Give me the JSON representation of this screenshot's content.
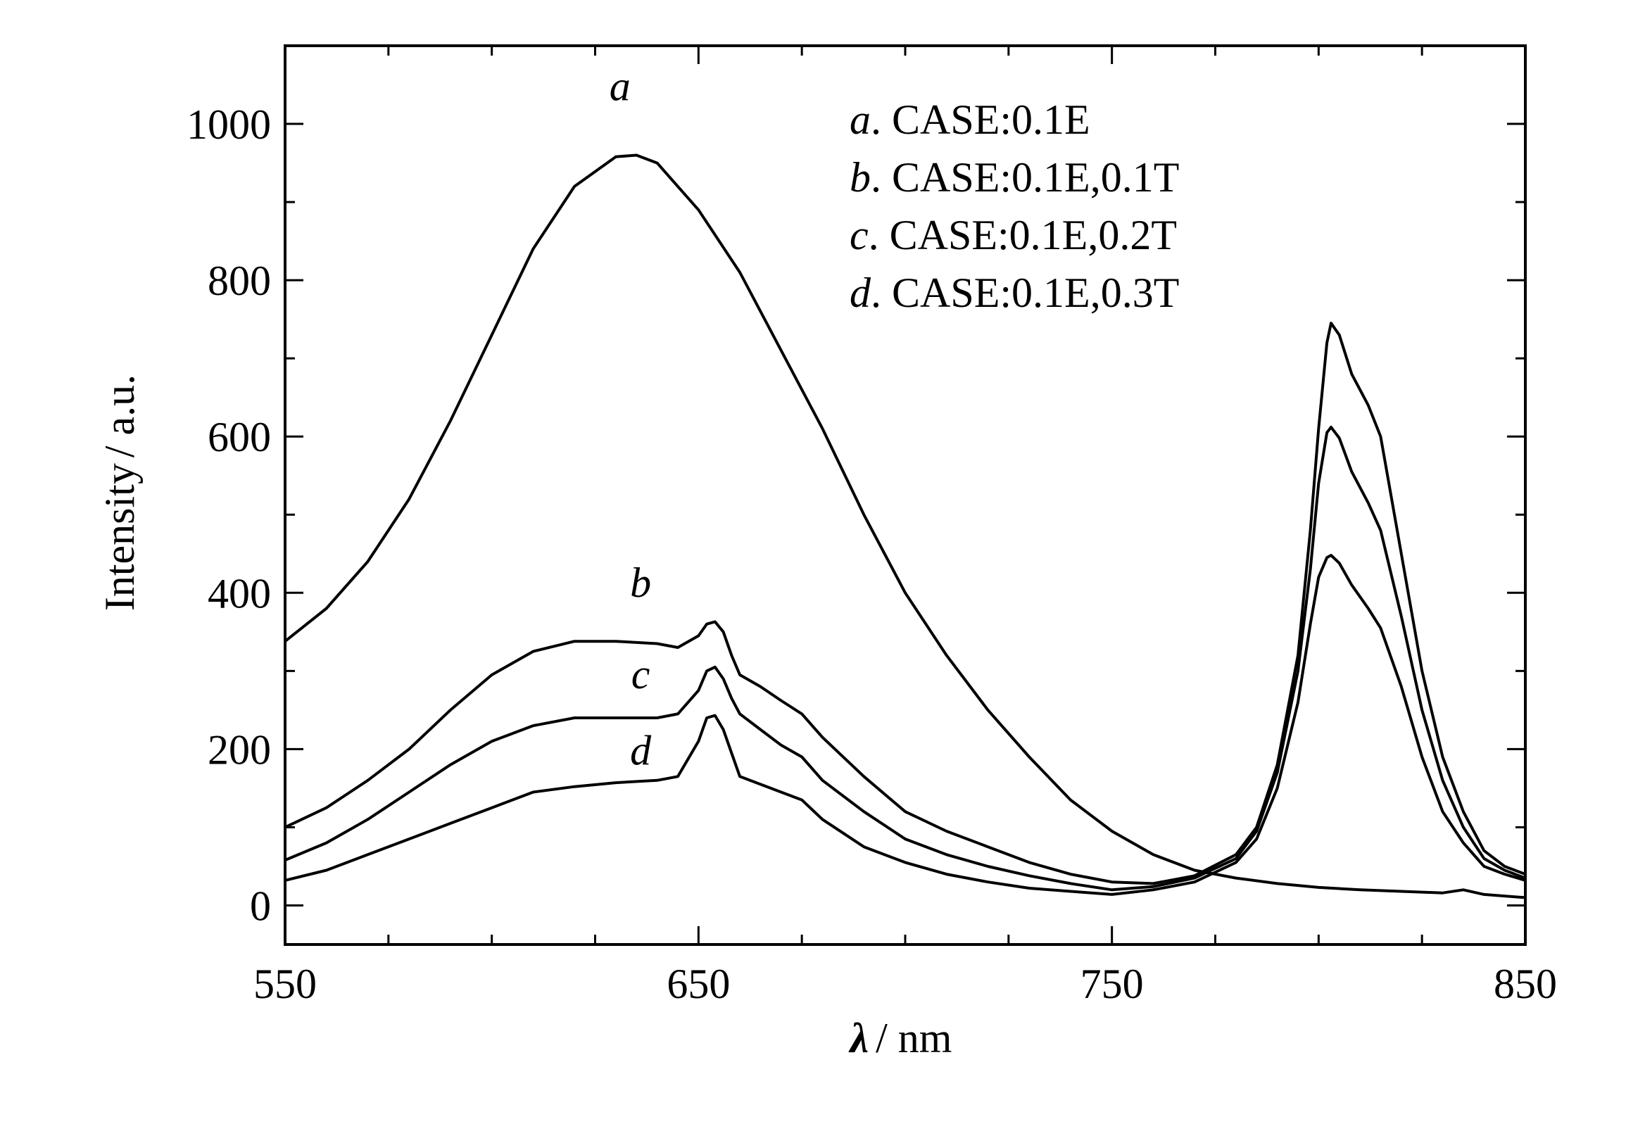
{
  "chart_data": {
    "type": "line",
    "xlabel_symbol": "λ",
    "xlabel_unit": "/ nm",
    "ylabel_text": "Intensity",
    "ylabel_unit": "/ a.u.",
    "xlim": [
      550,
      850
    ],
    "ylim": [
      -50,
      1100
    ],
    "x_ticks": [
      550,
      650,
      750,
      850
    ],
    "y_ticks": [
      0,
      200,
      400,
      600,
      800,
      1000
    ],
    "x_minor_step": 25,
    "y_minor_step": 100,
    "grid": false,
    "legend_placement": "top-right",
    "legend": [
      {
        "key": "a",
        "text": ". CASE:0.1E"
      },
      {
        "key": "b",
        "text": ". CASE:0.1E,0.1T"
      },
      {
        "key": "c",
        "text": ". CASE:0.1E,0.2T"
      },
      {
        "key": "d",
        "text": ". CASE:0.1E,0.3T"
      }
    ],
    "series": [
      {
        "name": "a",
        "label_at": [
          631,
          1030
        ],
        "points": [
          [
            550,
            338
          ],
          [
            560,
            380
          ],
          [
            570,
            440
          ],
          [
            580,
            520
          ],
          [
            590,
            620
          ],
          [
            600,
            730
          ],
          [
            610,
            840
          ],
          [
            620,
            920
          ],
          [
            630,
            958
          ],
          [
            635,
            960
          ],
          [
            640,
            950
          ],
          [
            650,
            890
          ],
          [
            660,
            810
          ],
          [
            670,
            710
          ],
          [
            680,
            610
          ],
          [
            690,
            500
          ],
          [
            700,
            400
          ],
          [
            710,
            320
          ],
          [
            720,
            250
          ],
          [
            730,
            190
          ],
          [
            740,
            135
          ],
          [
            750,
            95
          ],
          [
            760,
            65
          ],
          [
            770,
            45
          ],
          [
            780,
            35
          ],
          [
            790,
            28
          ],
          [
            800,
            23
          ],
          [
            810,
            20
          ],
          [
            820,
            18
          ],
          [
            830,
            16
          ],
          [
            835,
            20
          ],
          [
            840,
            14
          ],
          [
            850,
            10
          ]
        ]
      },
      {
        "name": "b",
        "label_at": [
          636,
          395
        ],
        "points": [
          [
            550,
            100
          ],
          [
            560,
            125
          ],
          [
            570,
            160
          ],
          [
            580,
            200
          ],
          [
            590,
            250
          ],
          [
            600,
            295
          ],
          [
            610,
            325
          ],
          [
            620,
            338
          ],
          [
            630,
            338
          ],
          [
            640,
            335
          ],
          [
            645,
            330
          ],
          [
            650,
            345
          ],
          [
            652,
            360
          ],
          [
            654,
            363
          ],
          [
            656,
            350
          ],
          [
            658,
            320
          ],
          [
            660,
            295
          ],
          [
            665,
            280
          ],
          [
            670,
            262
          ],
          [
            675,
            245
          ],
          [
            680,
            215
          ],
          [
            690,
            165
          ],
          [
            700,
            120
          ],
          [
            710,
            95
          ],
          [
            720,
            75
          ],
          [
            730,
            55
          ],
          [
            740,
            40
          ],
          [
            750,
            30
          ],
          [
            760,
            28
          ],
          [
            770,
            38
          ],
          [
            780,
            65
          ],
          [
            785,
            100
          ],
          [
            790,
            180
          ],
          [
            795,
            320
          ],
          [
            798,
            480
          ],
          [
            800,
            610
          ],
          [
            802,
            720
          ],
          [
            803,
            745
          ],
          [
            805,
            730
          ],
          [
            808,
            680
          ],
          [
            812,
            640
          ],
          [
            815,
            600
          ],
          [
            820,
            450
          ],
          [
            825,
            300
          ],
          [
            830,
            190
          ],
          [
            835,
            120
          ],
          [
            840,
            70
          ],
          [
            845,
            50
          ],
          [
            850,
            40
          ]
        ]
      },
      {
        "name": "c",
        "label_at": [
          636,
          278
        ],
        "points": [
          [
            550,
            58
          ],
          [
            560,
            80
          ],
          [
            570,
            110
          ],
          [
            580,
            145
          ],
          [
            590,
            180
          ],
          [
            600,
            210
          ],
          [
            610,
            230
          ],
          [
            620,
            240
          ],
          [
            630,
            240
          ],
          [
            640,
            240
          ],
          [
            645,
            245
          ],
          [
            650,
            275
          ],
          [
            652,
            300
          ],
          [
            654,
            305
          ],
          [
            656,
            290
          ],
          [
            658,
            265
          ],
          [
            660,
            245
          ],
          [
            665,
            225
          ],
          [
            670,
            205
          ],
          [
            675,
            190
          ],
          [
            680,
            160
          ],
          [
            690,
            120
          ],
          [
            700,
            85
          ],
          [
            710,
            65
          ],
          [
            720,
            50
          ],
          [
            730,
            38
          ],
          [
            740,
            28
          ],
          [
            750,
            20
          ],
          [
            760,
            24
          ],
          [
            770,
            35
          ],
          [
            780,
            60
          ],
          [
            785,
            95
          ],
          [
            790,
            170
          ],
          [
            795,
            300
          ],
          [
            798,
            430
          ],
          [
            800,
            540
          ],
          [
            802,
            605
          ],
          [
            803,
            612
          ],
          [
            805,
            598
          ],
          [
            808,
            555
          ],
          [
            812,
            515
          ],
          [
            815,
            480
          ],
          [
            820,
            370
          ],
          [
            825,
            250
          ],
          [
            830,
            160
          ],
          [
            835,
            100
          ],
          [
            840,
            60
          ],
          [
            845,
            45
          ],
          [
            850,
            35
          ]
        ]
      },
      {
        "name": "d",
        "label_at": [
          636,
          180
        ],
        "points": [
          [
            550,
            32
          ],
          [
            560,
            45
          ],
          [
            570,
            65
          ],
          [
            580,
            85
          ],
          [
            590,
            105
          ],
          [
            600,
            125
          ],
          [
            610,
            145
          ],
          [
            620,
            152
          ],
          [
            630,
            157
          ],
          [
            640,
            160
          ],
          [
            645,
            165
          ],
          [
            650,
            210
          ],
          [
            652,
            240
          ],
          [
            654,
            243
          ],
          [
            656,
            225
          ],
          [
            658,
            195
          ],
          [
            660,
            165
          ],
          [
            665,
            155
          ],
          [
            670,
            145
          ],
          [
            675,
            135
          ],
          [
            680,
            110
          ],
          [
            690,
            75
          ],
          [
            700,
            55
          ],
          [
            710,
            40
          ],
          [
            720,
            30
          ],
          [
            730,
            22
          ],
          [
            740,
            18
          ],
          [
            750,
            14
          ],
          [
            760,
            20
          ],
          [
            770,
            30
          ],
          [
            780,
            55
          ],
          [
            785,
            85
          ],
          [
            790,
            150
          ],
          [
            795,
            260
          ],
          [
            798,
            360
          ],
          [
            800,
            420
          ],
          [
            802,
            445
          ],
          [
            803,
            448
          ],
          [
            805,
            438
          ],
          [
            808,
            410
          ],
          [
            812,
            380
          ],
          [
            815,
            355
          ],
          [
            820,
            280
          ],
          [
            825,
            190
          ],
          [
            830,
            120
          ],
          [
            835,
            80
          ],
          [
            840,
            50
          ],
          [
            845,
            40
          ],
          [
            850,
            32
          ]
        ]
      }
    ]
  }
}
